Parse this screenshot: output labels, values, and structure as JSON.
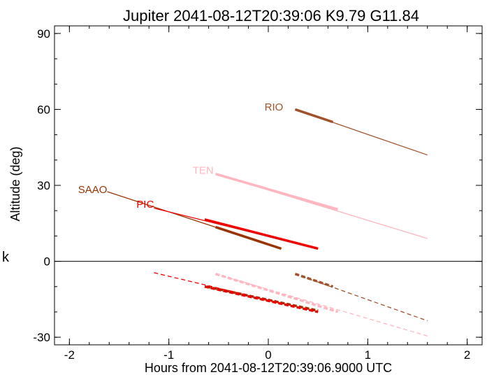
{
  "chart_data": {
    "type": "line",
    "title": "Jupiter 2041-08-12T20:39:06  K9.79  G11.84",
    "xlabel": "Hours from 2041-08-12T20:39:06.9000 UTC",
    "ylabel": "Altitude (deg)",
    "side_label": "k",
    "xlim": [
      -2.15,
      2.15
    ],
    "ylim": [
      -33,
      93
    ],
    "xticks": [
      -2,
      -1,
      0,
      1,
      2
    ],
    "xtick_labels": [
      "-2",
      "-1",
      "0",
      "1",
      "2"
    ],
    "yticks": [
      -30,
      0,
      30,
      60,
      90
    ],
    "ytick_labels": [
      "-30",
      "0",
      "30",
      "60",
      "90"
    ],
    "zero_line": 0,
    "series": [
      {
        "name": "RIO",
        "color": "#a0522d",
        "label_at": [
          0.15,
          61
        ],
        "thin": [
          [
            0.27,
            60.0
          ],
          [
            1.6,
            42.0
          ]
        ],
        "thick": [
          [
            0.27,
            60.0
          ],
          [
            0.65,
            55.0
          ]
        ],
        "dashed_thin": [
          [
            0.27,
            -5.0
          ],
          [
            1.6,
            -23.5
          ]
        ],
        "dashed_thick": [
          [
            0.27,
            -5.0
          ],
          [
            0.65,
            -10.0
          ]
        ]
      },
      {
        "name": "TEN",
        "color": "#ffb6c1",
        "label_at": [
          -0.55,
          36
        ],
        "thin": [
          [
            -0.53,
            34.5
          ],
          [
            1.6,
            9.0
          ]
        ],
        "thick": [
          [
            -0.53,
            34.5
          ],
          [
            0.7,
            20.5
          ]
        ],
        "dashed_thin": [
          [
            -0.53,
            -5.0
          ],
          [
            1.6,
            -29.5
          ]
        ],
        "dashed_thick": [
          [
            -0.53,
            -5.0
          ],
          [
            0.7,
            -20.0
          ]
        ]
      },
      {
        "name": "SAAO",
        "color": "#993300",
        "label_at": [
          -1.62,
          28.3
        ],
        "thin": [
          [
            -1.62,
            27.5
          ],
          [
            0.13,
            5.0
          ]
        ],
        "thick": [
          [
            -0.53,
            13.5
          ],
          [
            0.13,
            5.0
          ]
        ],
        "dashed_thin": [],
        "dashed_thick": [
          [
            -0.62,
            -10.0
          ],
          [
            0.5,
            -19.5
          ]
        ]
      },
      {
        "name": "PIC",
        "color": "#ee0000",
        "label_at": [
          -1.15,
          22.5
        ],
        "thin": [
          [
            -1.15,
            21.0
          ],
          [
            0.5,
            5.0
          ]
        ],
        "thick": [
          [
            -0.64,
            16.5
          ],
          [
            0.5,
            5.0
          ]
        ],
        "dashed_thin": [
          [
            -1.15,
            -4.5
          ],
          [
            0.5,
            -20.0
          ]
        ],
        "dashed_thick": [
          [
            -0.64,
            -10.0
          ],
          [
            0.5,
            -20.0
          ]
        ]
      }
    ]
  }
}
